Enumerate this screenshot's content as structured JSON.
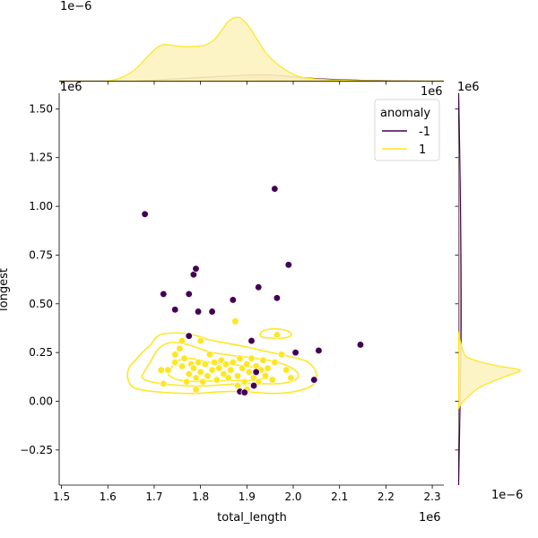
{
  "chart_data": {
    "type": "scatter",
    "title": "",
    "xlabel": "total_length",
    "ylabel": "longest",
    "x_offset_label": "1e6",
    "y_offset_label": "1e6",
    "xlim": [
      1.495,
      2.325
    ],
    "ylim": [
      -0.43,
      1.58
    ],
    "x_ticks": [
      1.5,
      1.6,
      1.7,
      1.8,
      1.9,
      2.0,
      2.1,
      2.2,
      2.3
    ],
    "x_tick_labels": [
      "1.5",
      "1.6",
      "1.7",
      "1.8",
      "1.9",
      "2.0",
      "2.1",
      "2.2",
      "2.3"
    ],
    "y_ticks": [
      -0.25,
      0.0,
      0.25,
      0.5,
      0.75,
      1.0,
      1.25,
      1.5
    ],
    "y_tick_labels": [
      "−0.25",
      "0.00",
      "0.25",
      "0.50",
      "0.75",
      "1.00",
      "1.25",
      "1.50"
    ],
    "legend": {
      "title": "anomaly",
      "position": "top-right",
      "entries": [
        {
          "label": "-1",
          "color": "#440154"
        },
        {
          "label": "1",
          "color": "#fde725"
        }
      ]
    },
    "colors": {
      "anomaly": "#440154",
      "normal": "#fde725",
      "normal_fill": "#fdf3c0",
      "anomaly_fill": "#d9c0c6"
    },
    "series": [
      {
        "name": "-1",
        "points": [
          [
            1.68,
            0.96
          ],
          [
            1.72,
            0.55
          ],
          [
            1.745,
            0.47
          ],
          [
            1.775,
            0.55
          ],
          [
            1.785,
            0.65
          ],
          [
            1.79,
            0.68
          ],
          [
            1.795,
            0.46
          ],
          [
            1.825,
            0.46
          ],
          [
            1.87,
            0.52
          ],
          [
            1.91,
            0.31
          ],
          [
            1.925,
            0.585
          ],
          [
            1.96,
            1.09
          ],
          [
            1.965,
            0.53
          ],
          [
            1.99,
            0.7
          ],
          [
            2.005,
            0.25
          ],
          [
            2.045,
            0.11
          ],
          [
            2.055,
            0.26
          ],
          [
            2.145,
            0.29
          ],
          [
            1.775,
            0.335
          ],
          [
            1.885,
            0.05
          ],
          [
            1.895,
            0.045
          ],
          [
            1.915,
            0.08
          ],
          [
            1.92,
            0.15
          ]
        ]
      },
      {
        "name": "1",
        "points": [
          [
            1.715,
            0.16
          ],
          [
            1.72,
            0.09
          ],
          [
            1.73,
            0.16
          ],
          [
            1.745,
            0.2
          ],
          [
            1.745,
            0.24
          ],
          [
            1.755,
            0.27
          ],
          [
            1.76,
            0.31
          ],
          [
            1.76,
            0.18
          ],
          [
            1.765,
            0.22
          ],
          [
            1.77,
            0.1
          ],
          [
            1.775,
            0.14
          ],
          [
            1.78,
            0.19
          ],
          [
            1.785,
            0.17
          ],
          [
            1.79,
            0.12
          ],
          [
            1.795,
            0.2
          ],
          [
            1.8,
            0.31
          ],
          [
            1.8,
            0.15
          ],
          [
            1.805,
            0.1
          ],
          [
            1.81,
            0.19
          ],
          [
            1.815,
            0.13
          ],
          [
            1.82,
            0.24
          ],
          [
            1.825,
            0.16
          ],
          [
            1.83,
            0.2
          ],
          [
            1.835,
            0.11
          ],
          [
            1.84,
            0.17
          ],
          [
            1.845,
            0.21
          ],
          [
            1.85,
            0.14
          ],
          [
            1.855,
            0.19
          ],
          [
            1.86,
            0.12
          ],
          [
            1.865,
            0.16
          ],
          [
            1.87,
            0.2
          ],
          [
            1.875,
            0.41
          ],
          [
            1.88,
            0.13
          ],
          [
            1.885,
            0.22
          ],
          [
            1.89,
            0.17
          ],
          [
            1.895,
            0.1
          ],
          [
            1.9,
            0.19
          ],
          [
            1.905,
            0.15
          ],
          [
            1.91,
            0.22
          ],
          [
            1.915,
            0.12
          ],
          [
            1.92,
            0.18
          ],
          [
            1.925,
            0.1
          ],
          [
            1.93,
            0.16
          ],
          [
            1.935,
            0.21
          ],
          [
            1.94,
            0.13
          ],
          [
            1.945,
            0.17
          ],
          [
            1.955,
            0.11
          ],
          [
            1.96,
            0.2
          ],
          [
            1.965,
            0.34
          ],
          [
            1.975,
            0.24
          ],
          [
            1.985,
            0.16
          ],
          [
            1.995,
            0.12
          ],
          [
            1.9,
            0.06
          ],
          [
            1.88,
            0.08
          ],
          [
            1.79,
            0.06
          ]
        ]
      }
    ]
  }
}
